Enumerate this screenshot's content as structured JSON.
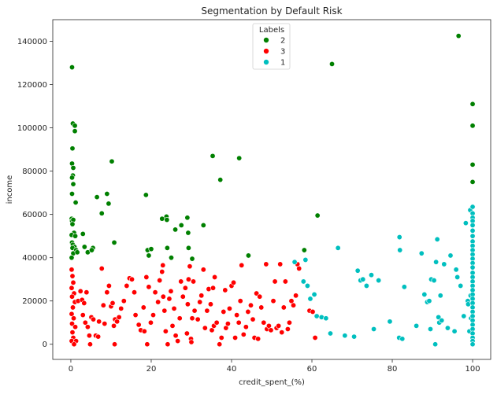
{
  "chart_data": {
    "type": "scatter",
    "title": "Segmentation by Default Risk",
    "xlabel": "credit_spent_(%)",
    "ylabel": "income",
    "xlim": [
      -4.5,
      104.5
    ],
    "ylim": [
      -7000,
      150000
    ],
    "x_ticks": [
      0,
      20,
      40,
      60,
      80,
      100
    ],
    "y_ticks": [
      0,
      20000,
      40000,
      60000,
      80000,
      100000,
      120000,
      140000
    ],
    "grid": false,
    "legend": {
      "title": "Labels",
      "placement": "top-center"
    },
    "series": [
      {
        "name": "2",
        "color": "#008000",
        "points": [
          [
            0.3,
            128000
          ],
          [
            0.5,
            102000
          ],
          [
            1.0,
            101000
          ],
          [
            1.0,
            98500
          ],
          [
            0.4,
            90500
          ],
          [
            0.3,
            83500
          ],
          [
            0.6,
            81500
          ],
          [
            0.5,
            78000
          ],
          [
            0.3,
            77000
          ],
          [
            0.6,
            74000
          ],
          [
            0.3,
            69500
          ],
          [
            1.2,
            65500
          ],
          [
            0.2,
            58000
          ],
          [
            0.3,
            57000
          ],
          [
            0.6,
            57500
          ],
          [
            0.4,
            55500
          ],
          [
            0.8,
            51500
          ],
          [
            0.2,
            50500
          ],
          [
            1.1,
            50000
          ],
          [
            0.3,
            47000
          ],
          [
            0.5,
            46000
          ],
          [
            0.9,
            45000
          ],
          [
            0.4,
            44500
          ],
          [
            1.3,
            43500
          ],
          [
            0.6,
            42000
          ],
          [
            1.6,
            42500
          ],
          [
            0.2,
            40000
          ],
          [
            3.0,
            51000
          ],
          [
            3.4,
            45000
          ],
          [
            4.2,
            42500
          ],
          [
            5.5,
            44500
          ],
          [
            5.2,
            43500
          ],
          [
            6.5,
            68000
          ],
          [
            7.7,
            60500
          ],
          [
            9.0,
            69500
          ],
          [
            9.4,
            65000
          ],
          [
            10.2,
            84500
          ],
          [
            10.8,
            47000
          ],
          [
            18.7,
            69000
          ],
          [
            19.1,
            43500
          ],
          [
            20.0,
            44000
          ],
          [
            19.4,
            41000
          ],
          [
            22.7,
            58000
          ],
          [
            23.8,
            59000
          ],
          [
            23.9,
            57500
          ],
          [
            24.0,
            44500
          ],
          [
            25.0,
            40000
          ],
          [
            26.0,
            53000
          ],
          [
            27.5,
            55000
          ],
          [
            29.0,
            58500
          ],
          [
            29.2,
            51500
          ],
          [
            29.3,
            44500
          ],
          [
            30.2,
            39500
          ],
          [
            33.0,
            55000
          ],
          [
            35.3,
            87000
          ],
          [
            37.2,
            76000
          ],
          [
            41.9,
            86000
          ],
          [
            44.2,
            41000
          ],
          [
            58.1,
            43500
          ],
          [
            61.4,
            59500
          ],
          [
            65.0,
            129500
          ],
          [
            96.5,
            142500
          ],
          [
            100.0,
            111000
          ],
          [
            100.0,
            101000
          ],
          [
            100.0,
            83000
          ],
          [
            100.0,
            75000
          ]
        ]
      },
      {
        "name": "3",
        "color": "#ff0000",
        "points": [
          [
            0.2,
            34500
          ],
          [
            0.4,
            31500
          ],
          [
            0.6,
            28500
          ],
          [
            0.2,
            26000
          ],
          [
            0.8,
            23500
          ],
          [
            0.3,
            22000
          ],
          [
            1.0,
            19500
          ],
          [
            0.5,
            17000
          ],
          [
            0.2,
            14000
          ],
          [
            0.7,
            12000
          ],
          [
            0.3,
            9500
          ],
          [
            1.1,
            8000
          ],
          [
            0.4,
            5500
          ],
          [
            0.6,
            3000
          ],
          [
            0.2,
            1500
          ],
          [
            1.3,
            1500
          ],
          [
            0.8,
            0
          ],
          [
            1.8,
            20000
          ],
          [
            2.4,
            24500
          ],
          [
            2.8,
            20500
          ],
          [
            3.3,
            19000
          ],
          [
            3.9,
            24000
          ],
          [
            3.0,
            13500
          ],
          [
            3.6,
            10000
          ],
          [
            4.2,
            8000
          ],
          [
            4.6,
            4000
          ],
          [
            5.1,
            12500
          ],
          [
            5.6,
            11500
          ],
          [
            4.8,
            0
          ],
          [
            6.2,
            4000
          ],
          [
            6.8,
            3500
          ],
          [
            7.0,
            10500
          ],
          [
            7.7,
            35000
          ],
          [
            8.1,
            18000
          ],
          [
            8.4,
            9500
          ],
          [
            9.0,
            24000
          ],
          [
            9.5,
            27000
          ],
          [
            10.0,
            17500
          ],
          [
            10.4,
            19000
          ],
          [
            10.7,
            8500
          ],
          [
            11.0,
            11500
          ],
          [
            11.5,
            10500
          ],
          [
            10.9,
            0
          ],
          [
            12.0,
            12500
          ],
          [
            12.5,
            16500
          ],
          [
            13.2,
            20000
          ],
          [
            13.9,
            27000
          ],
          [
            14.6,
            30500
          ],
          [
            15.2,
            30000
          ],
          [
            15.8,
            24000
          ],
          [
            16.1,
            13500
          ],
          [
            16.9,
            9000
          ],
          [
            17.4,
            6500
          ],
          [
            18.3,
            6000
          ],
          [
            18.1,
            17000
          ],
          [
            18.8,
            31000
          ],
          [
            19.4,
            26500
          ],
          [
            19.0,
            0
          ],
          [
            19.9,
            10000
          ],
          [
            20.5,
            13500
          ],
          [
            21.0,
            24000
          ],
          [
            21.7,
            19500
          ],
          [
            22.1,
            29500
          ],
          [
            22.7,
            33500
          ],
          [
            22.9,
            36500
          ],
          [
            23.0,
            22000
          ],
          [
            23.3,
            15500
          ],
          [
            23.6,
            6000
          ],
          [
            24.1,
            0
          ],
          [
            24.5,
            21000
          ],
          [
            24.9,
            24500
          ],
          [
            25.3,
            8500
          ],
          [
            25.7,
            16500
          ],
          [
            26.1,
            4000
          ],
          [
            26.6,
            1500
          ],
          [
            27.1,
            12000
          ],
          [
            27.4,
            29000
          ],
          [
            27.9,
            22000
          ],
          [
            28.5,
            26000
          ],
          [
            28.9,
            5000
          ],
          [
            29.1,
            18500
          ],
          [
            29.3,
            30000
          ],
          [
            29.6,
            36000
          ],
          [
            29.9,
            2500
          ],
          [
            30.0,
            1000
          ],
          [
            30.2,
            12000
          ],
          [
            30.5,
            29000
          ],
          [
            30.8,
            15500
          ],
          [
            31.6,
            11500
          ],
          [
            32.1,
            19500
          ],
          [
            32.5,
            22500
          ],
          [
            33.0,
            34500
          ],
          [
            33.4,
            7500
          ],
          [
            33.9,
            15500
          ],
          [
            34.3,
            25500
          ],
          [
            34.8,
            18500
          ],
          [
            35.1,
            6500
          ],
          [
            35.4,
            26000
          ],
          [
            35.6,
            8500
          ],
          [
            35.8,
            31000
          ],
          [
            36.3,
            10000
          ],
          [
            37.0,
            0
          ],
          [
            37.5,
            3000
          ],
          [
            38.0,
            15000
          ],
          [
            38.4,
            25000
          ],
          [
            38.6,
            7500
          ],
          [
            39.1,
            9500
          ],
          [
            39.5,
            16500
          ],
          [
            40.0,
            27000
          ],
          [
            40.5,
            28500
          ],
          [
            40.9,
            3000
          ],
          [
            41.3,
            13500
          ],
          [
            41.8,
            10000
          ],
          [
            42.5,
            36500
          ],
          [
            42.2,
            20000
          ],
          [
            43.0,
            4500
          ],
          [
            43.6,
            8000
          ],
          [
            44.1,
            15000
          ],
          [
            44.8,
            18000
          ],
          [
            45.3,
            11500
          ],
          [
            45.7,
            3000
          ],
          [
            46.2,
            23500
          ],
          [
            46.6,
            2500
          ],
          [
            47.0,
            22000
          ],
          [
            47.4,
            17000
          ],
          [
            48.0,
            10000
          ],
          [
            48.6,
            37000
          ],
          [
            48.8,
            7000
          ],
          [
            49.3,
            8500
          ],
          [
            49.8,
            6500
          ],
          [
            50.4,
            20000
          ],
          [
            50.8,
            29000
          ],
          [
            51.2,
            7500
          ],
          [
            51.7,
            8500
          ],
          [
            52.1,
            37000
          ],
          [
            52.5,
            5500
          ],
          [
            53.0,
            17000
          ],
          [
            53.4,
            29000
          ],
          [
            54.0,
            7000
          ],
          [
            54.4,
            10000
          ],
          [
            54.9,
            20000
          ],
          [
            55.4,
            18000
          ],
          [
            56.0,
            22500
          ],
          [
            56.4,
            37000
          ],
          [
            56.8,
            35000
          ],
          [
            59.4,
            15500
          ],
          [
            60.2,
            15000
          ],
          [
            60.8,
            3000
          ]
        ]
      },
      {
        "name": "1",
        "color": "#00bfbf",
        "points": [
          [
            55.7,
            38000
          ],
          [
            57.9,
            29000
          ],
          [
            58.4,
            39000
          ],
          [
            58.9,
            27000
          ],
          [
            59.6,
            21000
          ],
          [
            60.6,
            23000
          ],
          [
            61.2,
            13000
          ],
          [
            62.4,
            12500
          ],
          [
            63.5,
            12000
          ],
          [
            64.6,
            5000
          ],
          [
            66.5,
            44500
          ],
          [
            68.2,
            4000
          ],
          [
            70.5,
            3500
          ],
          [
            71.4,
            34000
          ],
          [
            72.1,
            29500
          ],
          [
            72.7,
            30000
          ],
          [
            73.6,
            27000
          ],
          [
            74.8,
            32000
          ],
          [
            75.4,
            7000
          ],
          [
            76.6,
            29500
          ],
          [
            79.4,
            10500
          ],
          [
            81.7,
            3000
          ],
          [
            81.8,
            49500
          ],
          [
            81.9,
            43500
          ],
          [
            82.5,
            2500
          ],
          [
            83.0,
            26500
          ],
          [
            86.0,
            8500
          ],
          [
            87.3,
            42000
          ],
          [
            88.0,
            23000
          ],
          [
            88.7,
            19500
          ],
          [
            89.2,
            20000
          ],
          [
            89.5,
            7000
          ],
          [
            89.7,
            30000
          ],
          [
            90.4,
            29500
          ],
          [
            90.7,
            0
          ],
          [
            90.9,
            38000
          ],
          [
            91.2,
            48500
          ],
          [
            91.5,
            12500
          ],
          [
            91.7,
            10000
          ],
          [
            92.0,
            22500
          ],
          [
            92.3,
            11000
          ],
          [
            92.9,
            37000
          ],
          [
            93.8,
            7500
          ],
          [
            94.5,
            41000
          ],
          [
            95.5,
            6000
          ],
          [
            95.9,
            34500
          ],
          [
            96.2,
            31000
          ],
          [
            97.0,
            27000
          ],
          [
            97.8,
            13000
          ],
          [
            98.3,
            56000
          ],
          [
            98.8,
            20000
          ],
          [
            98.9,
            18500
          ],
          [
            99.2,
            6000
          ],
          [
            99.4,
            62000
          ],
          [
            99.6,
            12000
          ],
          [
            99.5,
            22500
          ],
          [
            100.0,
            63500
          ],
          [
            100.0,
            60500
          ],
          [
            100.0,
            58500
          ],
          [
            100.0,
            57000
          ],
          [
            100.0,
            55000
          ],
          [
            100.0,
            52500
          ],
          [
            100.0,
            50000
          ],
          [
            100.0,
            47500
          ],
          [
            100.0,
            45500
          ],
          [
            100.0,
            43500
          ],
          [
            100.0,
            41500
          ],
          [
            100.0,
            39500
          ],
          [
            100.0,
            37500
          ],
          [
            100.0,
            35500
          ],
          [
            100.0,
            33000
          ],
          [
            100.0,
            31000
          ],
          [
            100.0,
            29000
          ],
          [
            100.0,
            27000
          ],
          [
            100.0,
            25000
          ],
          [
            100.0,
            23000
          ],
          [
            100.0,
            21000
          ],
          [
            100.0,
            19000
          ],
          [
            100.0,
            17000
          ],
          [
            100.0,
            15000
          ],
          [
            100.0,
            13000
          ],
          [
            100.0,
            11000
          ],
          [
            100.0,
            9000
          ],
          [
            100.0,
            7000
          ],
          [
            100.0,
            5000
          ],
          [
            100.0,
            3000
          ],
          [
            100.0,
            1500
          ],
          [
            100.0,
            0
          ]
        ]
      }
    ]
  }
}
